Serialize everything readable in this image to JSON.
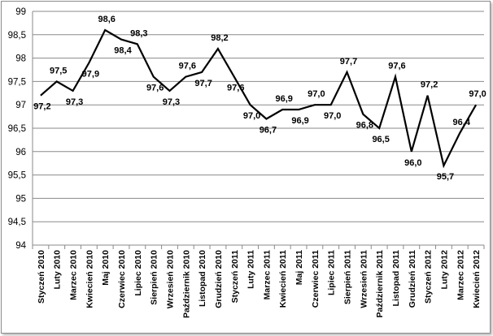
{
  "chart_data": {
    "type": "line",
    "title": "",
    "xlabel": "",
    "ylabel": "",
    "ylim": [
      94,
      99
    ],
    "yticks": [
      "94",
      "94,5",
      "95",
      "95,5",
      "96",
      "96,5",
      "97",
      "97,5",
      "98",
      "98,5",
      "99"
    ],
    "grid": true,
    "legend": "none",
    "line_color": "#000000",
    "categories": [
      "Styczeń 2010",
      "Luty 2010",
      "Marzec 2010",
      "Kwiecień 2010",
      "Maj 2010",
      "Czerwiec 2010",
      "Lipiec 2010",
      "Sierpień 2010",
      "Wrzesień 2010",
      "Październik 2010",
      "Listopad 2010",
      "Grudzień 2010",
      "Styczeń 2011",
      "Luty 2011",
      "Marzec 2011",
      "Kwiecień 2011",
      "Maj 2011",
      "Czerwiec 2011",
      "Lipiec 2011",
      "Sierpień 2011",
      "Wrzesień 2011",
      "Październik 2011",
      "Listopad 2011",
      "Grudzień 2011",
      "Styczeń 2012",
      "Luty 2012",
      "Marzec 2012",
      "Kwiecień 2012"
    ],
    "values": [
      97.2,
      97.5,
      97.3,
      97.9,
      98.6,
      98.4,
      98.3,
      97.6,
      97.3,
      97.6,
      97.7,
      98.2,
      97.6,
      97.0,
      96.7,
      96.9,
      96.9,
      97.0,
      97.0,
      97.7,
      96.8,
      96.5,
      97.6,
      96.0,
      97.2,
      95.7,
      96.4,
      97.0
    ],
    "data_labels": [
      "97,2",
      "97,5",
      "97,3",
      "97,9",
      "98,6",
      "98,4",
      "98,3",
      "97,6",
      "97,3",
      "97,6",
      "97,7",
      "98,2",
      "97,6",
      "97,0",
      "96,7",
      "96,9",
      "96,9",
      "97,0",
      "97,0",
      "97,7",
      "96,8",
      "96,5",
      "97,6",
      "96,0",
      "97,2",
      "95,7",
      "96,4",
      "97,0"
    ]
  }
}
